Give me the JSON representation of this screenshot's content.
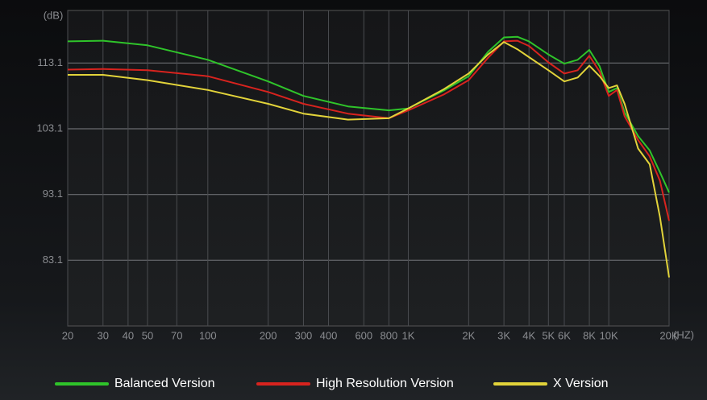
{
  "chart_data": {
    "type": "line",
    "log_x": true,
    "grid": true,
    "ylabel": "(dB)",
    "xlabel": "(HZ)",
    "x": [
      20,
      30,
      50,
      100,
      200,
      300,
      500,
      800,
      1000,
      1500,
      2000,
      2500,
      3000,
      3500,
      4000,
      5000,
      6000,
      7000,
      8000,
      9000,
      10000,
      11000,
      12000,
      14000,
      16000,
      18000,
      20000
    ],
    "xlim": [
      20,
      20000
    ],
    "xticks": [
      20,
      30,
      40,
      50,
      70,
      100,
      200,
      300,
      400,
      600,
      800,
      {
        "value": 1000,
        "label": "1K"
      },
      {
        "value": 2000,
        "label": "2K"
      },
      {
        "value": 3000,
        "label": "3K"
      },
      {
        "value": 4000,
        "label": "4K"
      },
      {
        "value": 5000,
        "label": "5K"
      },
      {
        "value": 6000,
        "label": "6K"
      },
      {
        "value": 8000,
        "label": "8K"
      },
      {
        "value": 10000,
        "label": "10K"
      },
      {
        "value": 20000,
        "label": "20K"
      }
    ],
    "ylim": [
      73.1,
      121.1
    ],
    "yticks": [
      83.1,
      93.1,
      103.1,
      113.1
    ],
    "series": [
      {
        "name": "Balanced Version",
        "color": "#2fc42a",
        "values": [
          116.4,
          116.5,
          115.8,
          113.6,
          110.3,
          108.1,
          106.5,
          105.9,
          106.2,
          108.9,
          111.1,
          114.8,
          117.0,
          117.1,
          116.4,
          114.4,
          113.0,
          113.6,
          115.1,
          112.6,
          108.7,
          109.3,
          105.6,
          102.0,
          99.8,
          96.5,
          93.4
        ]
      },
      {
        "name": "High Resolution Version",
        "color": "#d8231e",
        "values": [
          112.1,
          112.2,
          112.0,
          111.1,
          108.7,
          106.9,
          105.4,
          104.7,
          105.9,
          108.3,
          110.5,
          113.9,
          116.4,
          116.5,
          115.7,
          113.2,
          111.5,
          112.0,
          114.2,
          111.8,
          108.1,
          109.0,
          105.0,
          101.4,
          98.9,
          95.2,
          89.1
        ]
      },
      {
        "name": "X Version",
        "color": "#e2d33a",
        "values": [
          111.3,
          111.3,
          110.5,
          109.0,
          106.9,
          105.4,
          104.5,
          104.7,
          106.2,
          109.1,
          111.5,
          114.4,
          116.3,
          115.2,
          114.0,
          112.0,
          110.3,
          110.9,
          112.7,
          111.1,
          109.3,
          109.7,
          106.9,
          100.1,
          97.7,
          89.7,
          80.5
        ]
      }
    ]
  }
}
